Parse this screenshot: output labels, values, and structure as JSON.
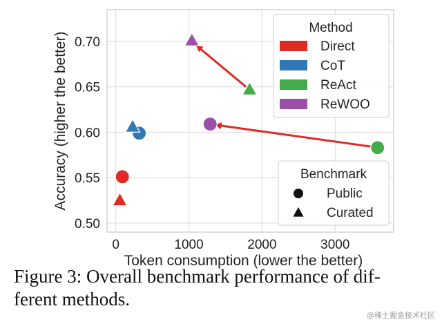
{
  "chart_data": {
    "type": "scatter",
    "xlabel": "Token consumption (lower the better)",
    "ylabel": "Accuracy (higher the better)",
    "xlim": [
      -120,
      3800
    ],
    "ylim": [
      0.49,
      0.735
    ],
    "xticks": [
      0,
      1000,
      2000,
      3000
    ],
    "yticks": [
      0.5,
      0.55,
      0.6,
      0.65,
      0.7
    ],
    "ytick_labels": [
      "0.50",
      "0.55",
      "0.60",
      "0.65",
      "0.70"
    ],
    "grid": true,
    "methods": [
      {
        "name": "Direct",
        "color": "#e02a25"
      },
      {
        "name": "CoT",
        "color": "#2f78b5"
      },
      {
        "name": "ReAct",
        "color": "#44ab4a"
      },
      {
        "name": "ReWOO",
        "color": "#9c4fa9"
      }
    ],
    "benchmarks": [
      {
        "name": "Public",
        "marker": "circle"
      },
      {
        "name": "Curated",
        "marker": "triangle"
      }
    ],
    "points": [
      {
        "method": "Direct",
        "benchmark": "Public",
        "x": 90,
        "y": 0.551
      },
      {
        "method": "Direct",
        "benchmark": "Curated",
        "x": 55,
        "y": 0.525
      },
      {
        "method": "CoT",
        "benchmark": "Public",
        "x": 320,
        "y": 0.599
      },
      {
        "method": "CoT",
        "benchmark": "Curated",
        "x": 230,
        "y": 0.606
      },
      {
        "method": "ReAct",
        "benchmark": "Public",
        "x": 3580,
        "y": 0.583
      },
      {
        "method": "ReAct",
        "benchmark": "Curated",
        "x": 1830,
        "y": 0.647
      },
      {
        "method": "ReWOO",
        "benchmark": "Public",
        "x": 1290,
        "y": 0.609
      },
      {
        "method": "ReWOO",
        "benchmark": "Curated",
        "x": 1040,
        "y": 0.701
      }
    ],
    "arrows": [
      {
        "from": [
          1780,
          0.65
        ],
        "to": [
          1110,
          0.695
        ],
        "color": "#e02a25"
      },
      {
        "from": [
          3510,
          0.584
        ],
        "to": [
          1370,
          0.608
        ],
        "color": "#e02a25"
      }
    ],
    "legend_method": {
      "title": "Method",
      "placement": "top-right"
    },
    "legend_benchmark": {
      "title": "Benchmark",
      "placement": "bottom-right"
    }
  },
  "caption": "Figure 3: Overall benchmark performance of different methods.",
  "caption_line1": "Figure 3: Overall benchmark performance of dif-",
  "caption_line2": "ferent methods.",
  "watermark": "@稀土掘金技术社区"
}
